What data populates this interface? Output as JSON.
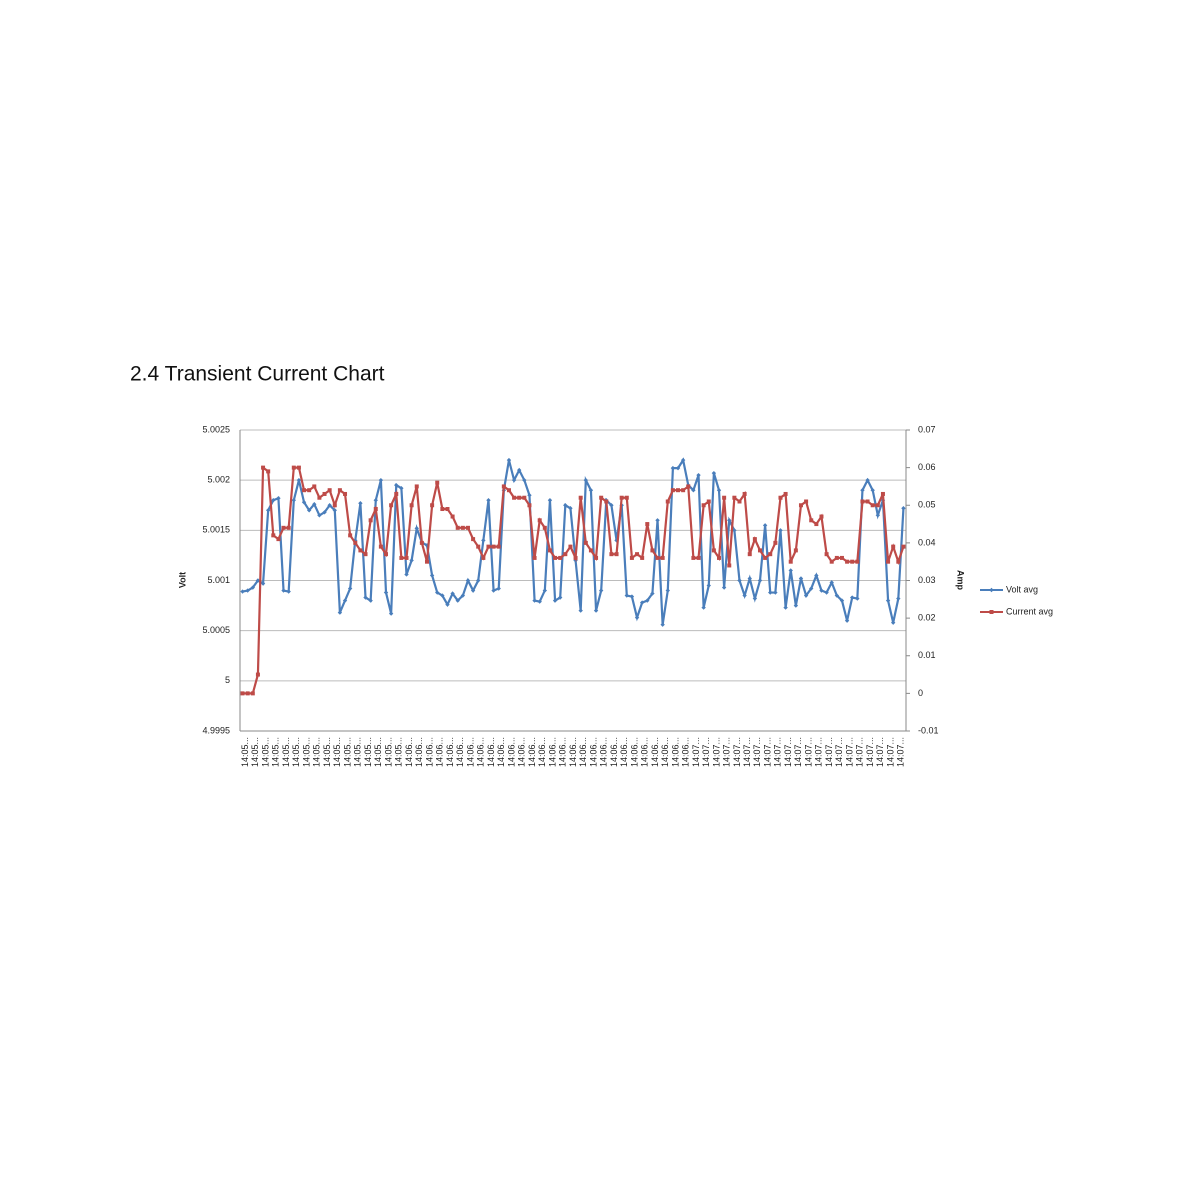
{
  "chart_data": {
    "type": "line",
    "title": "2.4 Transient Current Chart",
    "y_label": "Volt",
    "y2_label": "Amp",
    "categories": [
      "14:05...",
      null,
      "14:05...",
      null,
      "14:05...",
      null,
      "14:05...",
      null,
      "14:05...",
      null,
      "14:05...",
      null,
      "14:05...",
      null,
      "14:05...",
      null,
      "14:05...",
      null,
      "14:05...",
      null,
      "14:05...",
      null,
      "14:05...",
      null,
      "14:05...",
      null,
      "14:05...",
      null,
      "14:05...",
      null,
      "14:05...",
      null,
      "14:06...",
      null,
      "14:06...",
      null,
      "14:06...",
      null,
      "14:06...",
      null,
      "14:06...",
      null,
      "14:06...",
      null,
      "14:06...",
      null,
      "14:06...",
      null,
      "14:06...",
      null,
      "14:06...",
      null,
      "14:06...",
      null,
      "14:06...",
      null,
      "14:06...",
      null,
      "14:06...",
      null,
      "14:06...",
      null,
      "14:06...",
      null,
      "14:06...",
      null,
      "14:06...",
      null,
      "14:06...",
      null,
      "14:06...",
      null,
      "14:06...",
      null,
      "14:06...",
      null,
      "14:06...",
      null,
      "14:06...",
      null,
      "14:06...",
      null,
      "14:06...",
      null,
      "14:06...",
      null,
      "14:06...",
      null,
      "14:07...",
      null,
      "14:07...",
      null,
      "14:07...",
      null,
      "14:07...",
      null,
      "14:07...",
      null,
      "14:07...",
      null,
      "14:07...",
      null,
      "14:07...",
      null,
      "14:07...",
      null,
      "14:07...",
      null,
      "14:07...",
      null,
      "14:07...",
      null,
      "14:07...",
      null,
      "14:07...",
      null,
      "14:07...",
      null,
      "14:07...",
      null,
      "14:07...",
      null,
      "14:07...",
      null,
      "14:07...",
      null,
      "14:07...",
      null,
      "14:07...",
      null
    ],
    "series": [
      {
        "name": "Volt avg",
        "color": "#4a7ebb",
        "axis": "y",
        "values": [
          5.00089,
          5.0009,
          5.00093,
          5.001,
          5.00097,
          5.0017,
          5.0018,
          5.00182,
          5.0009,
          5.00089,
          5.0018,
          5.002,
          5.00178,
          5.0017,
          5.00176,
          5.00165,
          5.00168,
          5.00175,
          5.0017,
          5.00068,
          5.0008,
          5.00092,
          5.0014,
          5.00177,
          5.00083,
          5.0008,
          5.0018,
          5.002,
          5.00088,
          5.00067,
          5.00195,
          5.00192,
          5.00106,
          5.0012,
          5.00152,
          5.00138,
          5.00135,
          5.00105,
          5.00088,
          5.00085,
          5.00076,
          5.00087,
          5.0008,
          5.00085,
          5.001,
          5.0009,
          5.001,
          5.0014,
          5.0018,
          5.0009,
          5.00092,
          5.0019,
          5.0022,
          5.002,
          5.0021,
          5.002,
          5.00185,
          5.0008,
          5.00079,
          5.0009,
          5.0018,
          5.0008,
          5.00083,
          5.00175,
          5.00172,
          5.0012,
          5.0007,
          5.002,
          5.0019,
          5.0007,
          5.0009,
          5.0018,
          5.00175,
          5.0014,
          5.00175,
          5.00085,
          5.00084,
          5.00063,
          5.00078,
          5.0008,
          5.00087,
          5.0016,
          5.00056,
          5.0009,
          5.00212,
          5.00212,
          5.0022,
          5.00195,
          5.0019,
          5.00205,
          5.00073,
          5.00095,
          5.00207,
          5.0019,
          5.00093,
          5.0016,
          5.0015,
          5.001,
          5.00085,
          5.00102,
          5.00082,
          5.001,
          5.00155,
          5.00088,
          5.00088,
          5.0015,
          5.00073,
          5.0011,
          5.00075,
          5.00102,
          5.00085,
          5.00092,
          5.00105,
          5.0009,
          5.00088,
          5.00098,
          5.00085,
          5.0008,
          5.0006,
          5.00083,
          5.00082,
          5.0019,
          5.002,
          5.0019,
          5.00165,
          5.0018,
          5.0008,
          5.00058,
          5.00082,
          5.00172
        ]
      },
      {
        "name": "Current avg",
        "color": "#be4b48",
        "axis": "y2",
        "values": [
          0,
          0,
          0,
          0.005,
          0.06,
          0.059,
          0.042,
          0.041,
          0.044,
          0.044,
          0.06,
          0.06,
          0.054,
          0.054,
          0.055,
          0.052,
          0.053,
          0.054,
          0.05,
          0.054,
          0.053,
          0.042,
          0.04,
          0.038,
          0.037,
          0.046,
          0.049,
          0.039,
          0.037,
          0.05,
          0.053,
          0.036,
          0.036,
          0.05,
          0.055,
          0.04,
          0.035,
          0.05,
          0.056,
          0.049,
          0.049,
          0.047,
          0.044,
          0.044,
          0.044,
          0.041,
          0.039,
          0.036,
          0.039,
          0.039,
          0.039,
          0.055,
          0.054,
          0.052,
          0.052,
          0.052,
          0.05,
          0.036,
          0.046,
          0.044,
          0.038,
          0.036,
          0.036,
          0.037,
          0.039,
          0.036,
          0.052,
          0.04,
          0.038,
          0.036,
          0.052,
          0.051,
          0.037,
          0.037,
          0.052,
          0.052,
          0.036,
          0.037,
          0.036,
          0.045,
          0.038,
          0.036,
          0.036,
          0.051,
          0.054,
          0.054,
          0.054,
          0.055,
          0.036,
          0.036,
          0.05,
          0.051,
          0.038,
          0.036,
          0.052,
          0.034,
          0.052,
          0.051,
          0.053,
          0.037,
          0.041,
          0.038,
          0.036,
          0.037,
          0.04,
          0.052,
          0.053,
          0.035,
          0.038,
          0.05,
          0.051,
          0.046,
          0.045,
          0.047,
          0.037,
          0.035,
          0.036,
          0.036,
          0.035,
          0.035,
          0.035,
          0.051,
          0.051,
          0.05,
          0.05,
          0.053,
          0.035,
          0.039,
          0.035,
          0.039
        ]
      }
    ],
    "ylim": [
      4.9995,
      5.0025
    ],
    "yticks": [
      4.9995,
      5,
      5.0005,
      5.001,
      5.0015,
      5.002,
      5.0025
    ],
    "y2lim": [
      -0.01,
      0.07
    ],
    "y2ticks": [
      -0.01,
      0,
      0.01,
      0.02,
      0.03,
      0.04,
      0.05,
      0.06,
      0.07
    ],
    "grid": true,
    "legend": "right"
  }
}
